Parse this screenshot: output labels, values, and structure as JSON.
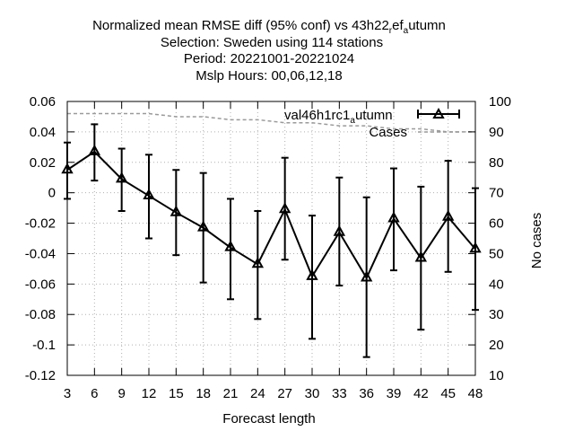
{
  "chart_data": {
    "type": "line",
    "title": {
      "line1_prefix": "Normalized mean RMSE diff (95% conf) vs 43h22",
      "line1_sub1": "r",
      "line1_mid": "ef",
      "line1_sub2": "a",
      "line1_suffix": "utumn",
      "line2": "Selection: Sweden using   114 stations",
      "line3": "Period: 20221001-20221024",
      "line4": "Mslp   Hours:  00,06,12,18"
    },
    "xlabel": "Forecast length",
    "ylabel": "",
    "y2label": "No cases",
    "x": [
      3,
      6,
      9,
      12,
      15,
      18,
      21,
      24,
      27,
      30,
      33,
      36,
      39,
      42,
      45,
      48
    ],
    "xlim": [
      3,
      48
    ],
    "ylim": [
      -0.12,
      0.06
    ],
    "y2lim": [
      10,
      100
    ],
    "yticks": [
      "0.06",
      "0.04",
      "0.02",
      "0",
      "-0.02",
      "-0.04",
      "-0.06",
      "-0.08",
      "-0.1",
      "-0.12"
    ],
    "yticks_values": [
      0.06,
      0.04,
      0.02,
      0,
      -0.02,
      -0.04,
      -0.06,
      -0.08,
      -0.1,
      -0.12
    ],
    "y2ticks": [
      "100",
      "90",
      "80",
      "70",
      "60",
      "50",
      "40",
      "30",
      "20",
      "10"
    ],
    "y2ticks_values": [
      100,
      90,
      80,
      70,
      60,
      50,
      40,
      30,
      20,
      10
    ],
    "xticks": [
      "3",
      "6",
      "9",
      "12",
      "15",
      "18",
      "21",
      "24",
      "27",
      "30",
      "33",
      "36",
      "39",
      "42",
      "45",
      "48"
    ],
    "grid": true,
    "legend_placement": "top-right",
    "series": [
      {
        "name_prefix": "val46h1rc1",
        "name_sub": "a",
        "name_suffix": "utumn",
        "values": [
          0.015,
          0.027,
          0.009,
          -0.002,
          -0.013,
          -0.023,
          -0.036,
          -0.047,
          -0.011,
          -0.055,
          -0.026,
          -0.056,
          -0.017,
          -0.043,
          -0.016,
          -0.037
        ],
        "lower": [
          -0.004,
          0.008,
          -0.012,
          -0.03,
          -0.041,
          -0.059,
          -0.07,
          -0.083,
          -0.044,
          -0.096,
          -0.061,
          -0.108,
          -0.051,
          -0.09,
          -0.052,
          -0.077
        ],
        "upper": [
          0.033,
          0.045,
          0.029,
          0.025,
          0.015,
          0.013,
          -0.004,
          -0.012,
          0.023,
          -0.015,
          0.01,
          -0.003,
          0.016,
          0.004,
          0.021,
          0.003
        ],
        "color": "#000000",
        "marker": "triangle"
      },
      {
        "name": "Cases",
        "axis": "y2",
        "x": [
          3,
          6,
          9,
          12,
          15,
          18,
          21,
          24,
          27,
          30,
          33,
          36,
          39,
          42,
          45,
          48
        ],
        "values": [
          96,
          96,
          96,
          96,
          95,
          95,
          94,
          94,
          93,
          93,
          92,
          92,
          91,
          91,
          90,
          90
        ],
        "color": "#9a9a9a"
      }
    ]
  }
}
